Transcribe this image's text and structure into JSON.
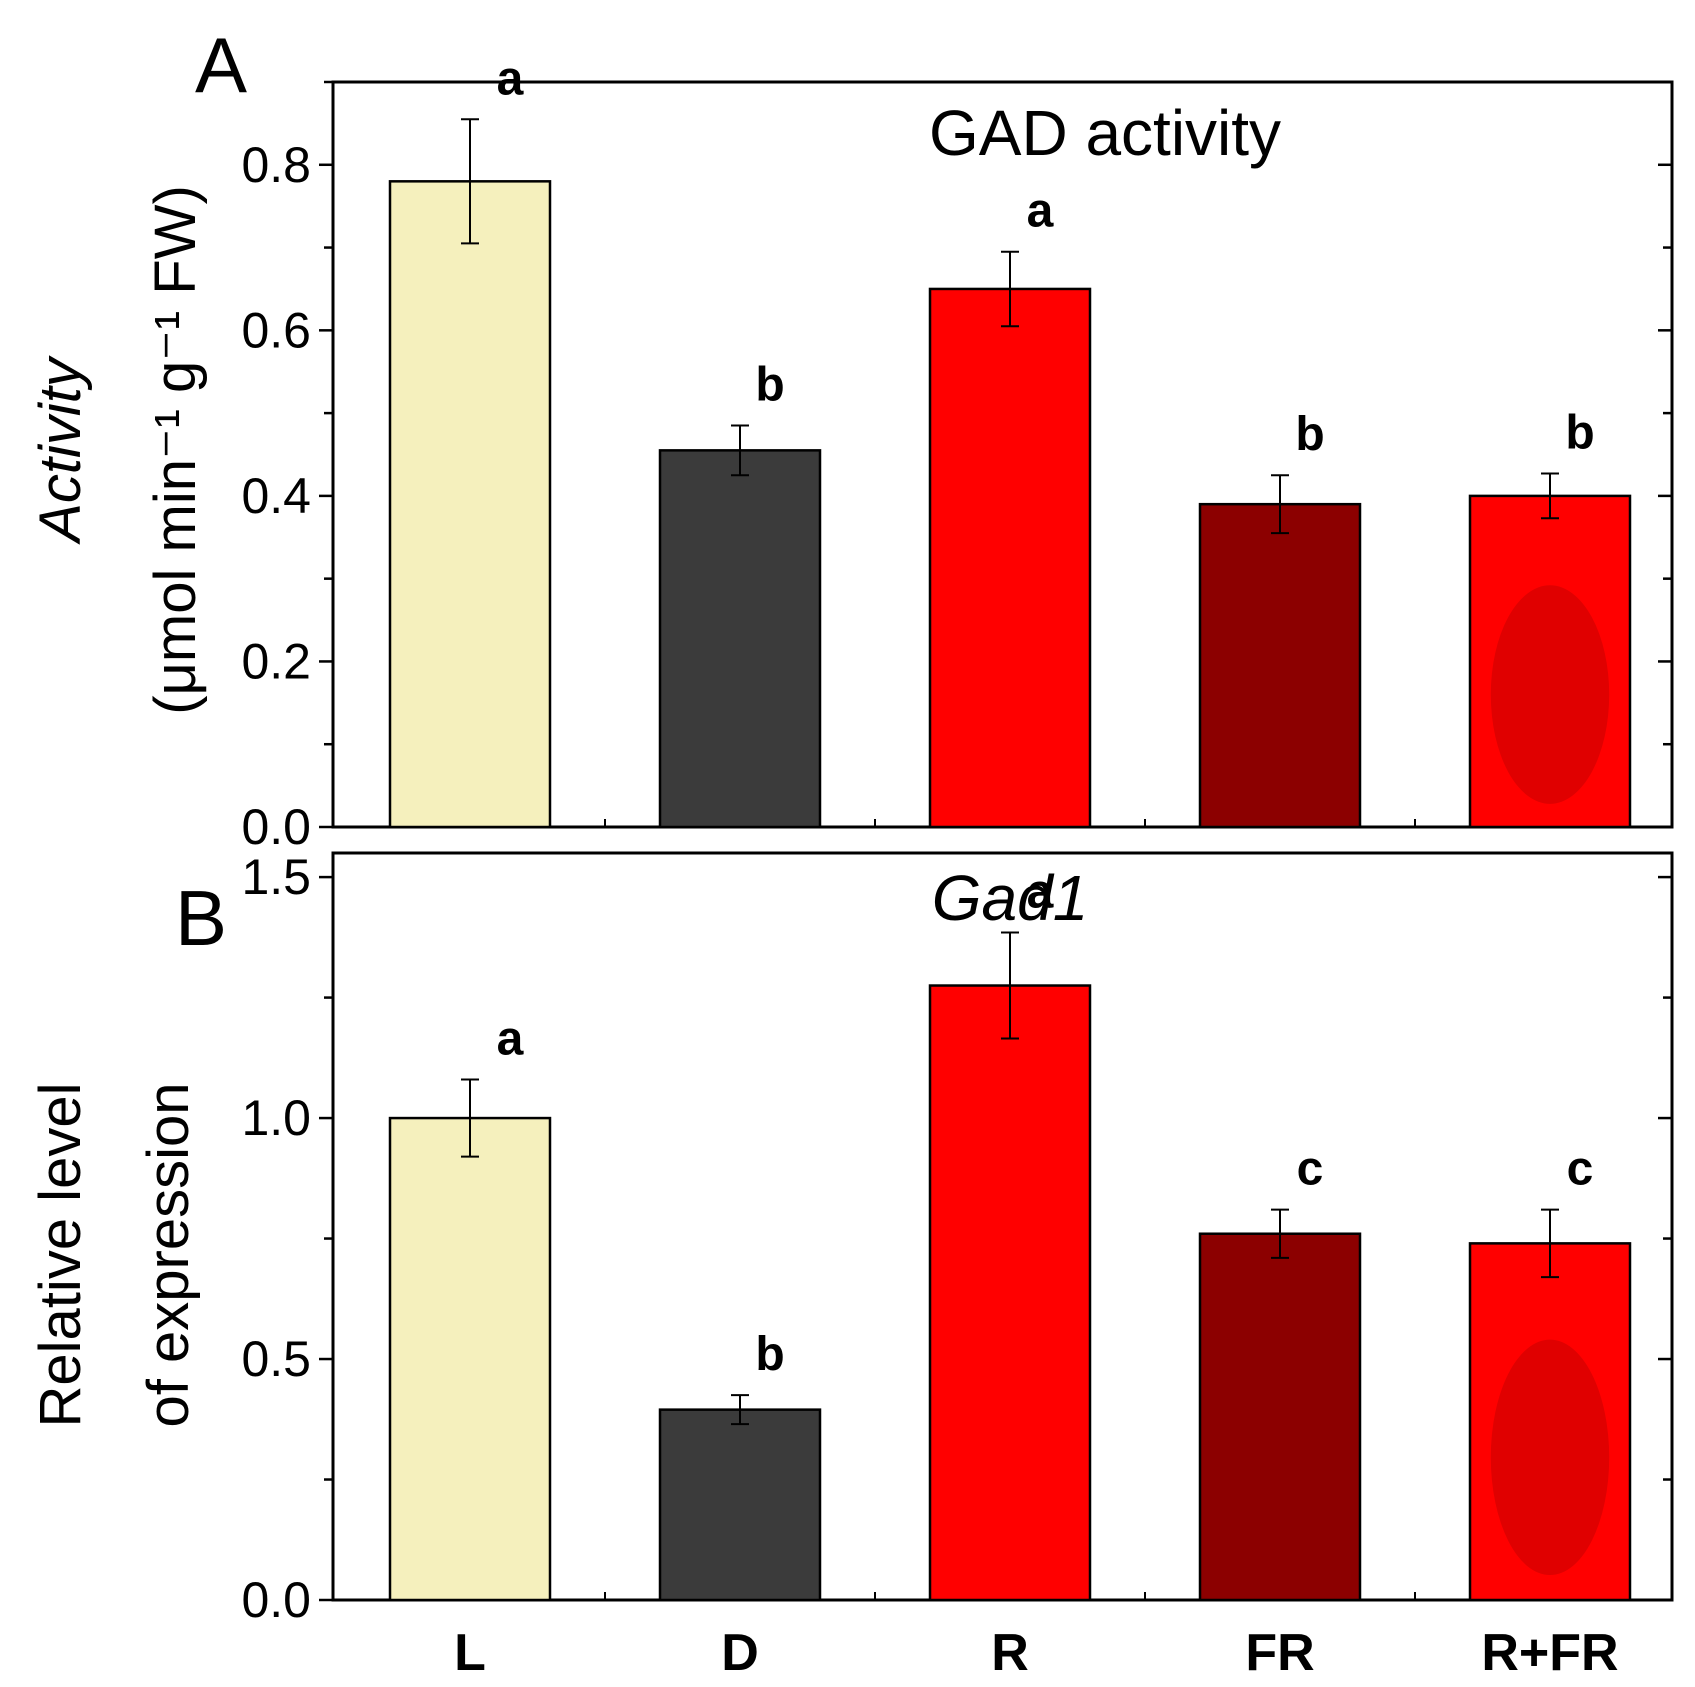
{
  "colors": {
    "L": "#f5f0bd",
    "D": "#3b3b3b",
    "R": "#ff0000",
    "FR": "#8c0000",
    "R+FR": "#ff0000",
    "R+FR_inner": "#e00000"
  },
  "chart_data": [
    {
      "type": "bar",
      "panel": "A",
      "title": "GAD activity",
      "ylabel_line1": "Activity",
      "ylabel_line2": "(μmol min⁻¹ g⁻¹ FW)",
      "xlabel": "",
      "categories": [
        "L",
        "D",
        "R",
        "FR",
        "R+FR"
      ],
      "values": [
        0.78,
        0.455,
        0.65,
        0.39,
        0.4
      ],
      "errors": [
        0.075,
        0.03,
        0.045,
        0.035,
        0.027
      ],
      "significance": [
        "a",
        "b",
        "a",
        "b",
        "b"
      ],
      "ylim": [
        0,
        0.9
      ],
      "yticks": [
        0.0,
        0.2,
        0.4,
        0.6,
        0.8
      ],
      "ytick_labels": [
        "0.0",
        "0.2",
        "0.4",
        "0.6",
        "0.8"
      ],
      "grid": false
    },
    {
      "type": "bar",
      "panel": "B",
      "title": "Gad1",
      "ylabel_line1": "Relative level",
      "ylabel_line2": "of expression",
      "xlabel": "",
      "categories": [
        "L",
        "D",
        "R",
        "FR",
        "R+FR"
      ],
      "values": [
        1.0,
        0.395,
        1.275,
        0.76,
        0.74
      ],
      "errors": [
        0.08,
        0.03,
        0.11,
        0.05,
        0.07
      ],
      "significance": [
        "a",
        "b",
        "a",
        "c",
        "c"
      ],
      "ylim": [
        0,
        1.55
      ],
      "yticks": [
        0.0,
        0.5,
        1.0,
        1.5
      ],
      "ytick_labels": [
        "0.0",
        "0.5",
        "1.0",
        "1.5"
      ],
      "grid": false
    }
  ]
}
